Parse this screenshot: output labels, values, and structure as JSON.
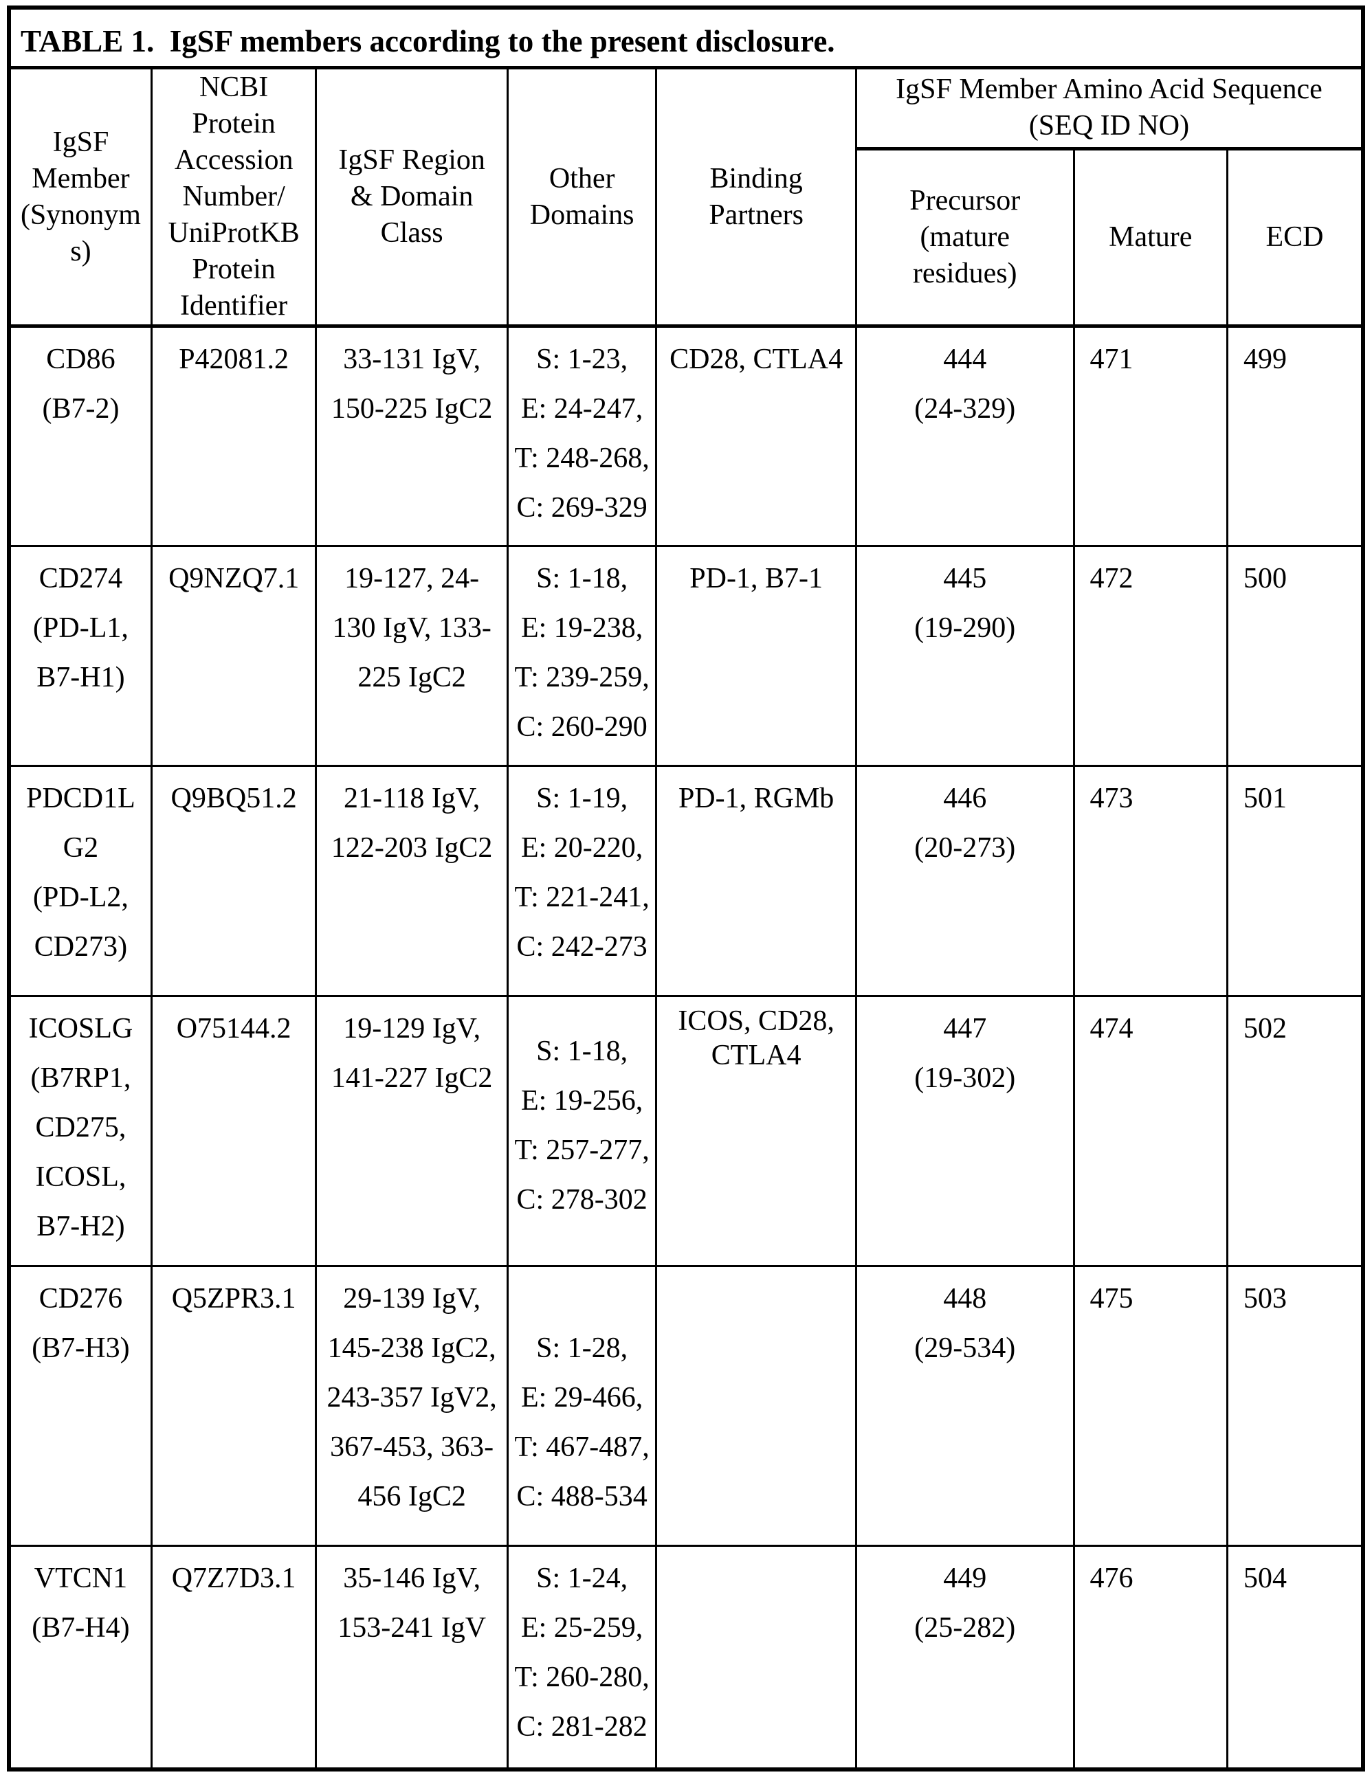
{
  "title": "TABLE 1.  IgSF members according to the present disclosure.",
  "header": {
    "igsf_member": "IgSF\nMember\n(Synonym\ns)",
    "accession": "NCBI\nProtein\nAccession\nNumber/\nUniProtKB\nProtein\nIdentifier",
    "region": "IgSF Region\n& Domain\nClass",
    "other_domains": "Other\nDomains",
    "binding_partners": "Binding\nPartners",
    "seq_group": "IgSF Member Amino Acid Sequence\n(SEQ ID NO)",
    "precursor": "Precursor\n(mature\nresidues)",
    "mature": "Mature",
    "ecd": "ECD"
  },
  "rows": [
    {
      "member": "CD86\n(B7-2)",
      "accession": "P42081.2",
      "region": "33-131 IgV,\n150-225 IgC2",
      "other": "S: 1-23,\nE: 24-247,\nT: 248-268,\nC: 269-329",
      "binding": "CD28, CTLA4",
      "precursor": "444\n(24-329)",
      "mature": "471",
      "ecd": "499"
    },
    {
      "member": "CD274\n(PD-L1,\nB7-H1)",
      "accession": "Q9NZQ7.1",
      "region": "19-127, 24-\n130 IgV, 133-\n225 IgC2",
      "other": "S: 1-18,\nE: 19-238,\nT: 239-259,\nC: 260-290",
      "binding": "PD-1, B7-1",
      "precursor": "445\n(19-290)",
      "mature": "472",
      "ecd": "500"
    },
    {
      "member": "PDCD1L\nG2\n(PD-L2,\nCD273)",
      "accession": "Q9BQ51.2",
      "region": "21-118 IgV,\n122-203 IgC2",
      "other": "S: 1-19,\nE: 20-220,\nT: 221-241,\nC: 242-273",
      "binding": "PD-1, RGMb",
      "precursor": "446\n(20-273)",
      "mature": "473",
      "ecd": "501"
    },
    {
      "member": "ICOSLG\n(B7RP1,\nCD275,\nICOSL,\nB7-H2)",
      "accession": "O75144.2",
      "region": "19-129 IgV,\n141-227 IgC2",
      "other": "S: 1-18,\nE: 19-256,\nT: 257-277,\nC: 278-302",
      "binding": "ICOS, CD28,\nCTLA4",
      "precursor": "447\n(19-302)",
      "mature": "474",
      "ecd": "502"
    },
    {
      "member": "CD276\n(B7-H3)",
      "accession": "Q5ZPR3.1",
      "region": "29-139 IgV,\n145-238 IgC2,\n243-357 IgV2,\n367-453, 363-\n456 IgC2",
      "other": "S: 1-28,\nE: 29-466,\nT: 467-487,\nC: 488-534",
      "binding": "",
      "precursor": "448\n(29-534)",
      "mature": "475",
      "ecd": "503"
    },
    {
      "member": "VTCN1\n(B7-H4)",
      "accession": "Q7Z7D3.1",
      "region": "35-146 IgV,\n153-241 IgV",
      "other": "S: 1-24,\nE: 25-259,\nT: 260-280,\nC: 281-282",
      "binding": "",
      "precursor": "449\n(25-282)",
      "mature": "476",
      "ecd": "504"
    }
  ]
}
